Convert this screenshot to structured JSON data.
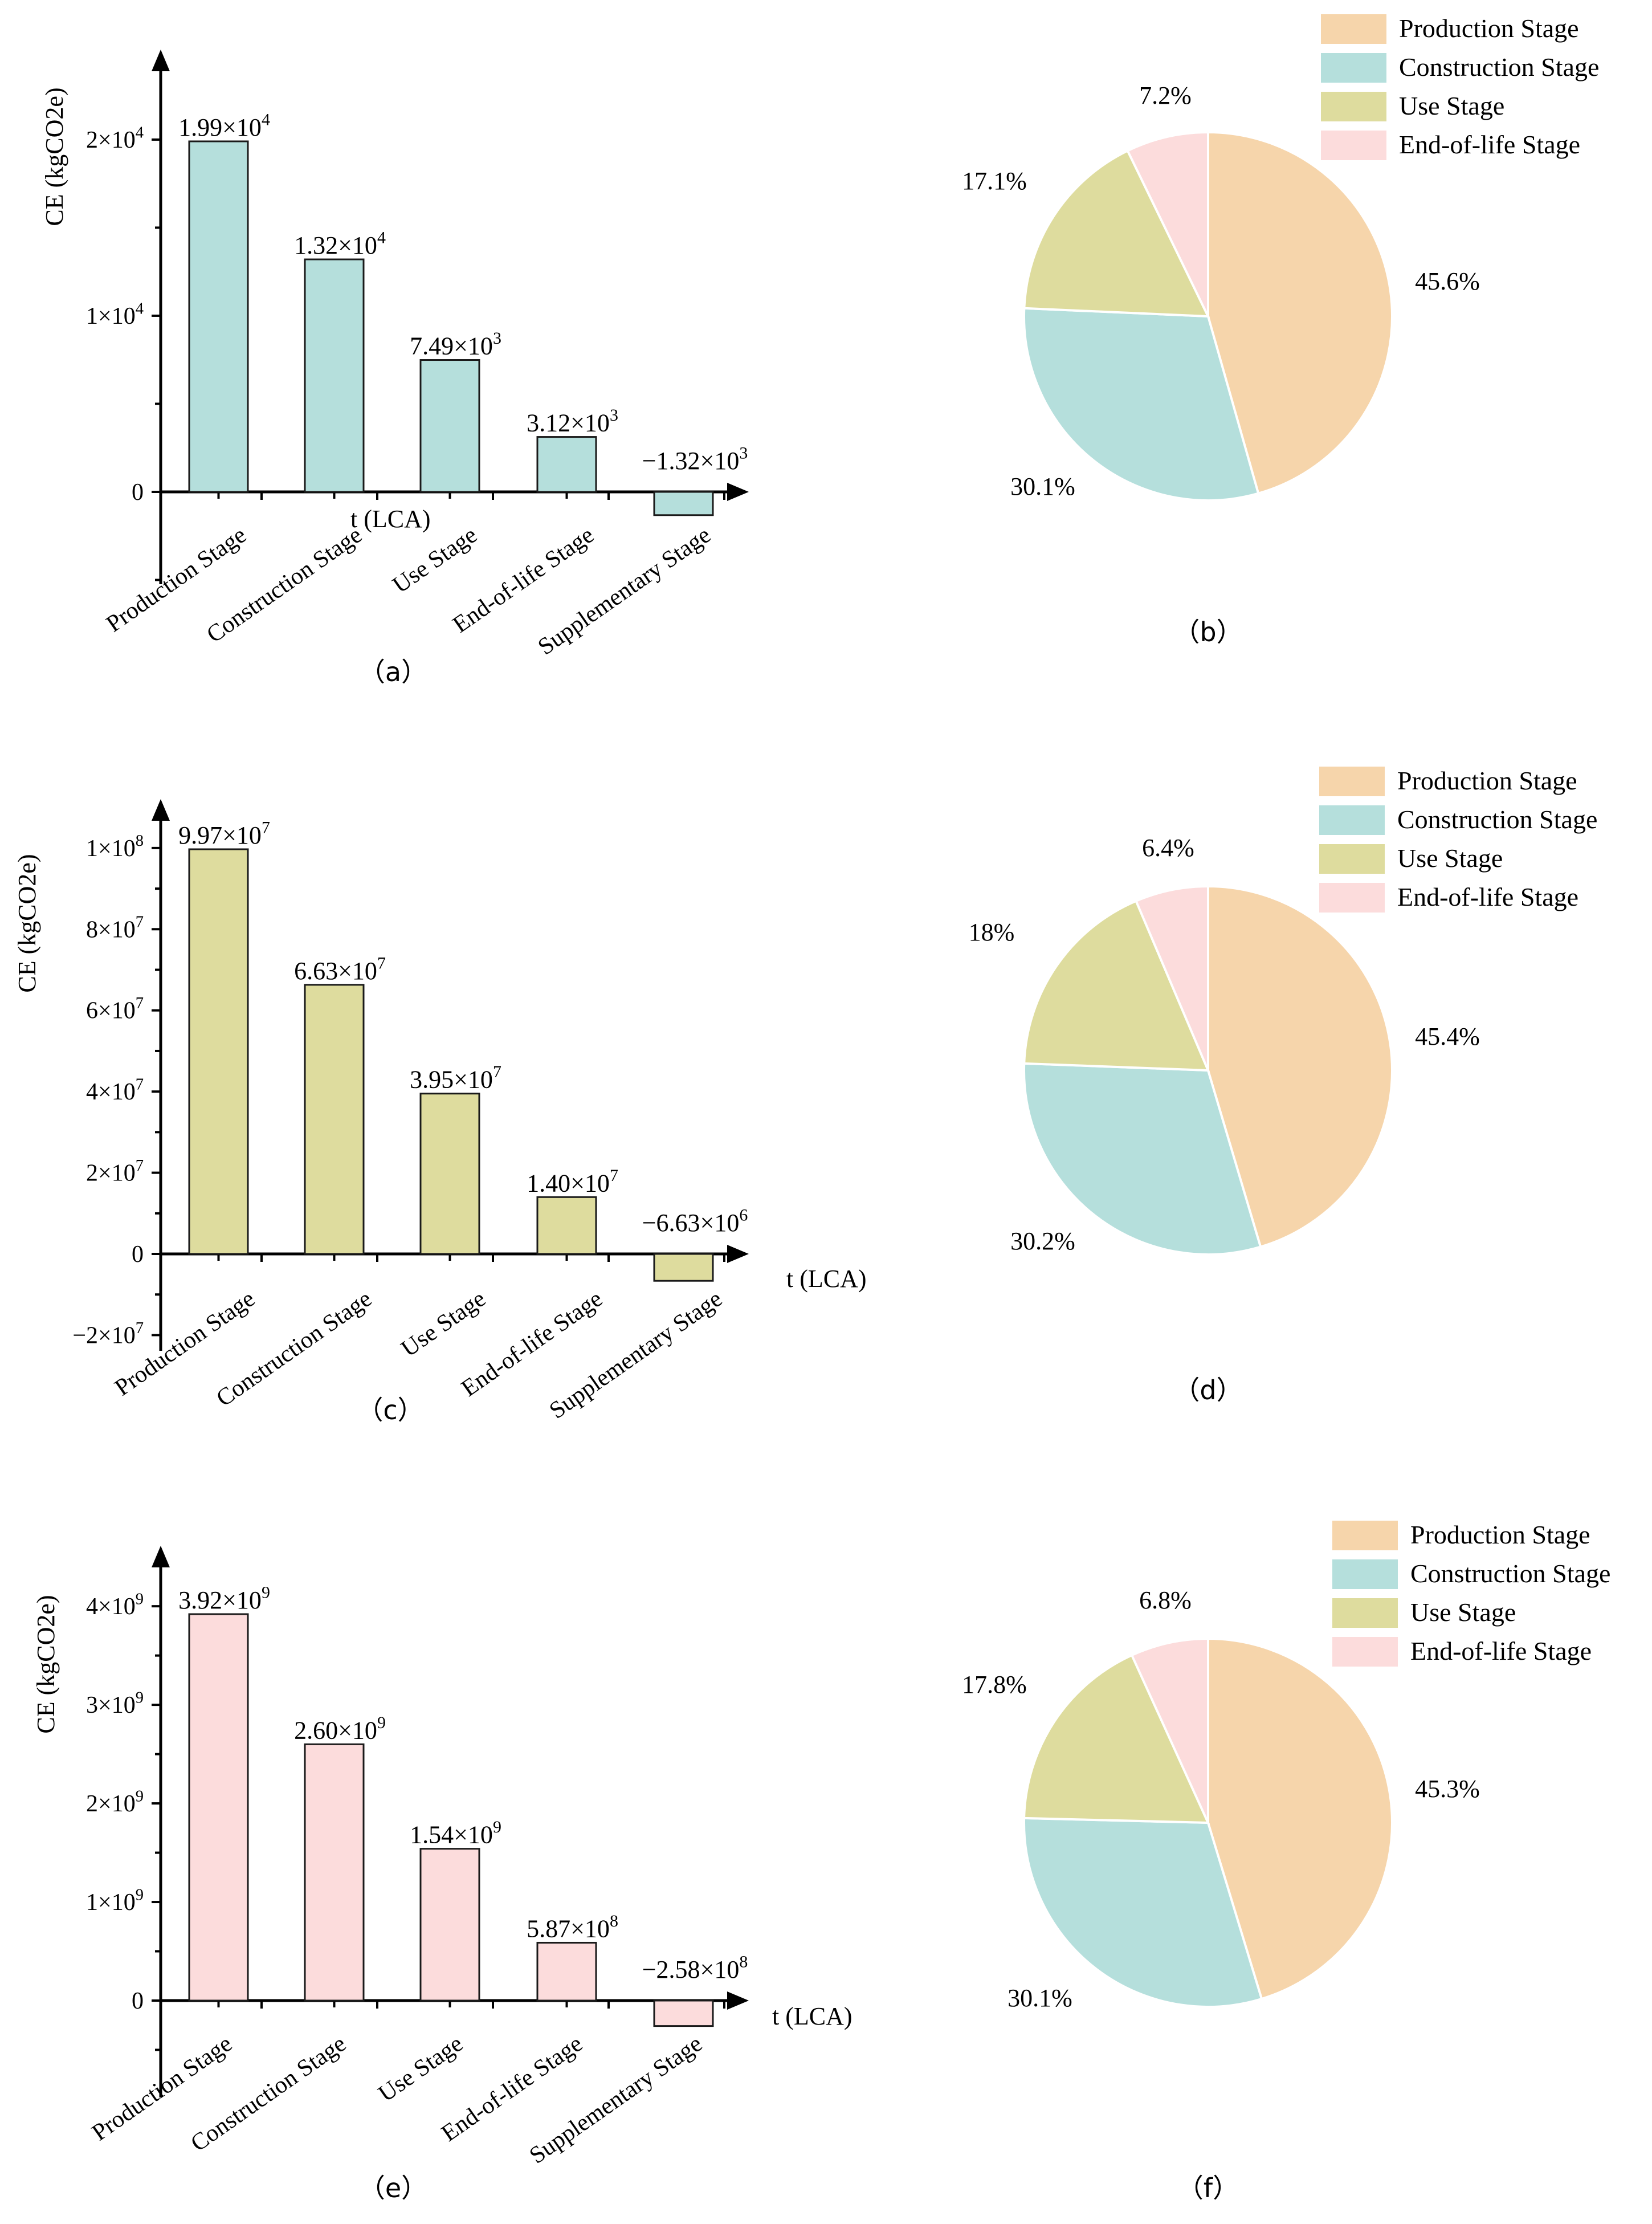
{
  "chart_data": [
    {
      "id": "a",
      "type": "bar",
      "panel_label": "（a）",
      "ylabel": "CE (kgCO2e)",
      "xlabel": "t (LCA)",
      "categories": [
        "Production Stage",
        "Construction Stage",
        "Use Stage",
        "End-of-life Stage",
        "Supplementary Stage"
      ],
      "values": [
        19900,
        13200,
        7490,
        3120,
        -1320
      ],
      "value_labels": [
        {
          "mantissa": "1.99",
          "exp": "4"
        },
        {
          "mantissa": "1.32",
          "exp": "4"
        },
        {
          "mantissa": "7.49",
          "exp": "3"
        },
        {
          "mantissa": "3.12",
          "exp": "3"
        },
        {
          "mantissa": "−1.32",
          "exp": "3"
        }
      ],
      "yticks": [
        {
          "value": 0,
          "mantissa": "0",
          "exp": ""
        },
        {
          "value": 10000,
          "mantissa": "1",
          "exp": "4"
        },
        {
          "value": 20000,
          "mantissa": "2",
          "exp": "4"
        }
      ],
      "ylim": [
        -5000,
        25000
      ],
      "bar_color": "#b5dfdc"
    },
    {
      "id": "b",
      "type": "pie",
      "panel_label": "（b）",
      "labels": [
        "Production Stage",
        "Construction Stage",
        "Use Stage",
        "End-of-life Stage"
      ],
      "values": [
        45.6,
        30.1,
        17.1,
        7.2
      ],
      "value_labels": [
        "45.6%",
        "30.1%",
        "17.1%",
        "7.2%"
      ],
      "colors": [
        "#f6d5ab",
        "#b5dfdc",
        "#dedc9e",
        "#fcdcdc"
      ],
      "legend_position": "top-right"
    },
    {
      "id": "c",
      "type": "bar",
      "panel_label": "（c）",
      "ylabel": "CE (kgCO2e)",
      "xlabel": "t (LCA)",
      "categories": [
        "Production Stage",
        "Construction Stage",
        "Use Stage",
        "End-of-life Stage",
        "Supplementary Stage"
      ],
      "values": [
        99700000,
        66300000,
        39500000,
        14000000,
        -6630000
      ],
      "value_labels": [
        {
          "mantissa": "9.97",
          "exp": "7"
        },
        {
          "mantissa": "6.63",
          "exp": "7"
        },
        {
          "mantissa": "3.95",
          "exp": "7"
        },
        {
          "mantissa": "1.40",
          "exp": "7"
        },
        {
          "mantissa": "−6.63",
          "exp": "6"
        }
      ],
      "yticks": [
        {
          "value": -20000000,
          "mantissa": "−2",
          "exp": "7"
        },
        {
          "value": 0,
          "mantissa": "0",
          "exp": ""
        },
        {
          "value": 20000000,
          "mantissa": "2",
          "exp": "7"
        },
        {
          "value": 40000000,
          "mantissa": "4",
          "exp": "7"
        },
        {
          "value": 60000000,
          "mantissa": "6",
          "exp": "7"
        },
        {
          "value": 80000000,
          "mantissa": "8",
          "exp": "7"
        },
        {
          "value": 100000000,
          "mantissa": "1",
          "exp": "8"
        }
      ],
      "ylim": [
        -20000000,
        110000000
      ],
      "bar_color": "#dedc9e"
    },
    {
      "id": "d",
      "type": "pie",
      "panel_label": "（d）",
      "labels": [
        "Production Stage",
        "Construction Stage",
        "Use Stage",
        "End-of-life Stage"
      ],
      "values": [
        45.4,
        30.2,
        18.0,
        6.4
      ],
      "value_labels": [
        "45.4%",
        "30.2%",
        "18%",
        "6.4%"
      ],
      "colors": [
        "#f6d5ab",
        "#b5dfdc",
        "#dedc9e",
        "#fcdcdc"
      ],
      "legend_position": "top-right"
    },
    {
      "id": "e",
      "type": "bar",
      "panel_label": "（e）",
      "ylabel": "CE (kgCO2e)",
      "xlabel": "t (LCA)",
      "categories": [
        "Production Stage",
        "Construction Stage",
        "Use Stage",
        "End-of-life Stage",
        "Supplementary Stage"
      ],
      "values": [
        3920000000,
        2600000000,
        1540000000,
        587000000,
        -258000000
      ],
      "value_labels": [
        {
          "mantissa": "3.92",
          "exp": "9"
        },
        {
          "mantissa": "2.60",
          "exp": "9"
        },
        {
          "mantissa": "1.54",
          "exp": "9"
        },
        {
          "mantissa": "5.87",
          "exp": "8"
        },
        {
          "mantissa": "−2.58",
          "exp": "8"
        }
      ],
      "yticks": [
        {
          "value": 0,
          "mantissa": "0",
          "exp": ""
        },
        {
          "value": 1000000000,
          "mantissa": "1",
          "exp": "9"
        },
        {
          "value": 2000000000,
          "mantissa": "2",
          "exp": "9"
        },
        {
          "value": 3000000000,
          "mantissa": "3",
          "exp": "9"
        },
        {
          "value": 4000000000,
          "mantissa": "4",
          "exp": "9"
        }
      ],
      "ylim": [
        -500000000,
        4400000000
      ],
      "bar_color": "#fcdcdc"
    },
    {
      "id": "f",
      "type": "pie",
      "panel_label": "（f）",
      "labels": [
        "Production Stage",
        "Construction Stage",
        "Use Stage",
        "End-of-life Stage"
      ],
      "values": [
        45.3,
        30.1,
        17.8,
        6.8
      ],
      "value_labels": [
        "45.3%",
        "30.1%",
        "17.8%",
        "6.8%"
      ],
      "colors": [
        "#f6d5ab",
        "#b5dfdc",
        "#dedc9e",
        "#fcdcdc"
      ],
      "legend_position": "top-right"
    }
  ]
}
